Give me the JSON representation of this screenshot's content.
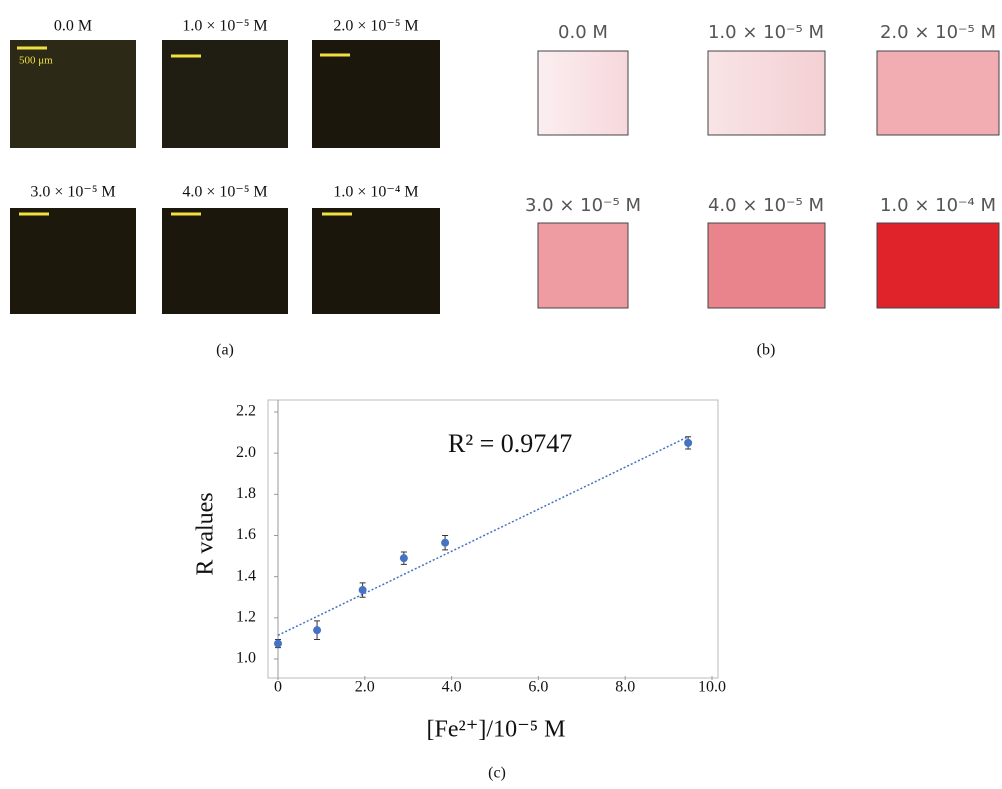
{
  "panels": {
    "a": {
      "caption": "(a)",
      "scale_bar": "500 μm",
      "labels": [
        "0.0 M",
        "1.0 × 10⁻⁵ M",
        "2.0 × 10⁻⁵ M",
        "3.0 × 10⁻⁵ M",
        "4.0 × 10⁻⁵ M",
        "1.0 × 10⁻⁴ M"
      ]
    },
    "b": {
      "caption": "(b)",
      "labels": [
        "0.0 M",
        "1.0 × 10⁻⁵ M",
        "2.0 × 10⁻⁵ M",
        "3.0 × 10⁻⁵ M",
        "4.0 × 10⁻⁵ M",
        "1.0 × 10⁻⁴ M"
      ]
    }
  },
  "chart_data": {
    "type": "scatter",
    "caption": "(c)",
    "x_label": "[Fe²⁺]/10⁻⁵ M",
    "y_label": "R values",
    "annotation": "R²  =  0.9747",
    "x": [
      0,
      0.9,
      1.95,
      2.9,
      3.85,
      9.45
    ],
    "series": [
      {
        "color": "#4472c4",
        "values": [
          1.075,
          1.14,
          1.335,
          1.49,
          1.565,
          2.05
        ],
        "errors": [
          0.02,
          0.045,
          0.035,
          0.03,
          0.035,
          0.03
        ]
      }
    ],
    "trendline": {
      "x": [
        0,
        9.45
      ],
      "values": [
        1.115,
        2.08
      ],
      "color": "#4472c4"
    },
    "xlim": [
      0,
      10
    ],
    "ylim": [
      1.0,
      2.2
    ],
    "xticks": [
      0,
      {
        "value": 2,
        "label": "2.0"
      },
      {
        "value": 4,
        "label": "4.0"
      },
      {
        "value": 6,
        "label": "6.0"
      },
      {
        "value": 8,
        "label": "8.0"
      },
      {
        "value": 10,
        "label": "10.0"
      }
    ],
    "yticks": [
      {
        "value": 1,
        "label": "1.0"
      },
      1.2,
      1.4,
      1.6,
      1.8,
      {
        "value": 2,
        "label": "2.0"
      },
      2.2
    ]
  }
}
